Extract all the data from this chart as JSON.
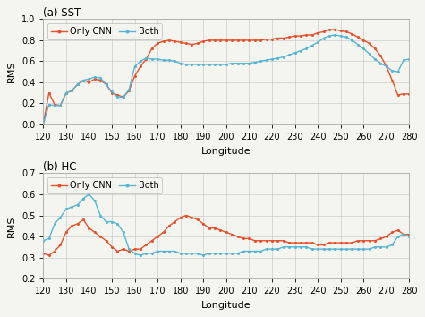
{
  "longitudes": [
    120,
    122.5,
    125,
    127.5,
    130,
    132.5,
    135,
    137.5,
    140,
    142.5,
    145,
    147.5,
    150,
    152.5,
    155,
    157.5,
    160,
    162.5,
    165,
    167.5,
    170,
    172.5,
    175,
    177.5,
    180,
    182.5,
    185,
    187.5,
    190,
    192.5,
    195,
    197.5,
    200,
    202.5,
    205,
    207.5,
    210,
    212.5,
    215,
    217.5,
    220,
    222.5,
    225,
    227.5,
    230,
    232.5,
    235,
    237.5,
    240,
    242.5,
    245,
    247.5,
    250,
    252.5,
    255,
    257.5,
    260,
    262.5,
    265,
    267.5,
    270,
    272.5,
    275,
    277.5,
    280
  ],
  "sst_cnn": [
    0.0,
    0.3,
    0.19,
    0.18,
    0.3,
    0.32,
    0.38,
    0.42,
    0.4,
    0.43,
    0.42,
    0.38,
    0.3,
    0.28,
    0.26,
    0.32,
    0.46,
    0.55,
    0.62,
    0.72,
    0.77,
    0.79,
    0.8,
    0.79,
    0.78,
    0.77,
    0.76,
    0.77,
    0.79,
    0.8,
    0.8,
    0.8,
    0.8,
    0.8,
    0.8,
    0.8,
    0.8,
    0.8,
    0.8,
    0.81,
    0.81,
    0.82,
    0.82,
    0.83,
    0.84,
    0.84,
    0.85,
    0.85,
    0.87,
    0.88,
    0.9,
    0.9,
    0.89,
    0.88,
    0.86,
    0.83,
    0.8,
    0.77,
    0.72,
    0.65,
    0.55,
    0.42,
    0.28,
    0.29,
    0.29
  ],
  "sst_both": [
    0.0,
    0.19,
    0.18,
    0.18,
    0.3,
    0.32,
    0.38,
    0.42,
    0.43,
    0.45,
    0.44,
    0.38,
    0.31,
    0.26,
    0.26,
    0.33,
    0.55,
    0.6,
    0.63,
    0.62,
    0.62,
    0.61,
    0.61,
    0.6,
    0.58,
    0.57,
    0.57,
    0.57,
    0.57,
    0.57,
    0.57,
    0.57,
    0.57,
    0.58,
    0.58,
    0.58,
    0.58,
    0.59,
    0.6,
    0.61,
    0.62,
    0.63,
    0.64,
    0.66,
    0.68,
    0.7,
    0.72,
    0.75,
    0.78,
    0.82,
    0.84,
    0.85,
    0.84,
    0.83,
    0.8,
    0.76,
    0.72,
    0.67,
    0.62,
    0.58,
    0.55,
    0.51,
    0.5,
    0.61,
    0.62
  ],
  "hc_cnn": [
    0.32,
    0.31,
    0.33,
    0.36,
    0.42,
    0.45,
    0.46,
    0.48,
    0.44,
    0.42,
    0.4,
    0.38,
    0.35,
    0.33,
    0.34,
    0.33,
    0.34,
    0.34,
    0.36,
    0.38,
    0.4,
    0.42,
    0.45,
    0.47,
    0.49,
    0.5,
    0.49,
    0.48,
    0.46,
    0.44,
    0.44,
    0.43,
    0.42,
    0.41,
    0.4,
    0.39,
    0.39,
    0.38,
    0.38,
    0.38,
    0.38,
    0.38,
    0.38,
    0.37,
    0.37,
    0.37,
    0.37,
    0.37,
    0.36,
    0.36,
    0.37,
    0.37,
    0.37,
    0.37,
    0.37,
    0.38,
    0.38,
    0.38,
    0.38,
    0.39,
    0.4,
    0.42,
    0.43,
    0.41,
    0.41
  ],
  "hc_both": [
    0.38,
    0.39,
    0.46,
    0.49,
    0.53,
    0.54,
    0.55,
    0.58,
    0.6,
    0.57,
    0.5,
    0.47,
    0.47,
    0.46,
    0.42,
    0.34,
    0.32,
    0.31,
    0.32,
    0.32,
    0.33,
    0.33,
    0.33,
    0.33,
    0.32,
    0.32,
    0.32,
    0.32,
    0.31,
    0.32,
    0.32,
    0.32,
    0.32,
    0.32,
    0.32,
    0.33,
    0.33,
    0.33,
    0.33,
    0.34,
    0.34,
    0.34,
    0.35,
    0.35,
    0.35,
    0.35,
    0.35,
    0.34,
    0.34,
    0.34,
    0.34,
    0.34,
    0.34,
    0.34,
    0.34,
    0.34,
    0.34,
    0.34,
    0.35,
    0.35,
    0.35,
    0.36,
    0.4,
    0.41,
    0.4
  ],
  "cnn_color": "#E8502A",
  "both_color": "#56B4D4",
  "title_a": "(a) SST",
  "title_b": "(b) HC",
  "xlabel": "Longitude",
  "ylabel": "RMS",
  "legend_cnn": "Only CNN",
  "legend_both": "Both",
  "xlim": [
    120,
    280
  ],
  "sst_ylim": [
    0.0,
    1.0
  ],
  "hc_ylim": [
    0.2,
    0.7
  ],
  "xticks": [
    120,
    130,
    140,
    150,
    160,
    170,
    180,
    190,
    200,
    210,
    220,
    230,
    240,
    250,
    260,
    270,
    280
  ],
  "sst_yticks": [
    0.0,
    0.2,
    0.4,
    0.6,
    0.8,
    1.0
  ],
  "hc_yticks": [
    0.2,
    0.3,
    0.4,
    0.5,
    0.6,
    0.7
  ],
  "marker": "o",
  "markersize": 2.2,
  "linewidth": 1.0,
  "bg_color": "#f5f5f0",
  "grid_color": "#cccccc"
}
